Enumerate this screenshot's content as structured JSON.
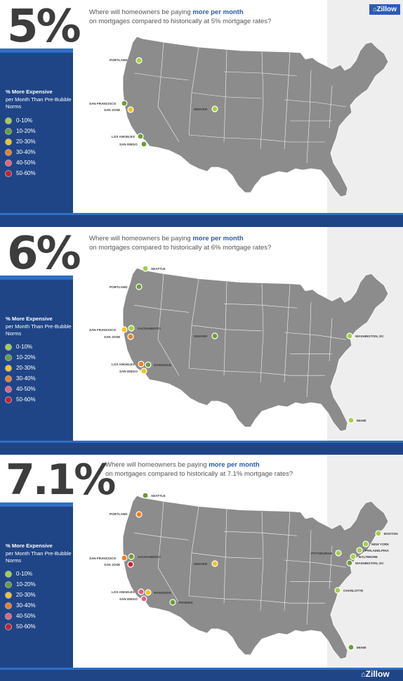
{
  "legend": {
    "title_bold": "% More Expensive",
    "title_rest": "per Month Than Pre-Bubble Norms",
    "ranges": [
      "0-10%",
      "10-20%",
      "20-30%",
      "30-40%",
      "40-50%",
      "50-60%"
    ],
    "colors": [
      "#a6cf45",
      "#6c9d34",
      "#f6c21b",
      "#ef7f22",
      "#ee5f79",
      "#cc1f2e"
    ]
  },
  "brand": "Zillow",
  "panels": [
    {
      "rate": "5%",
      "question_pre": "Where will homeowners be paying ",
      "question_hl": "more per month",
      "question_post": "on mortgages compared to historically at 5% mortgage rates?",
      "cities": [
        {
          "name": "PORTLAND",
          "bucket": 0
        },
        {
          "name": "SAN FRANCISCO",
          "bucket": 1
        },
        {
          "name": "SAN JOSE",
          "bucket": 2
        },
        {
          "name": "DENVER",
          "bucket": 0
        },
        {
          "name": "LOS ANGELES",
          "bucket": 1
        },
        {
          "name": "SAN DIEGO",
          "bucket": 1
        }
      ]
    },
    {
      "rate": "6%",
      "question_pre": "Where will homeowners be paying ",
      "question_hl": "more per month",
      "question_post": "on mortgages compared to historically at 6% mortgage rates?",
      "cities": [
        {
          "name": "SEATTLE",
          "bucket": 0
        },
        {
          "name": "PORTLAND",
          "bucket": 1
        },
        {
          "name": "SAN FRANCISCO",
          "bucket": 2
        },
        {
          "name": "SACRAMENTO",
          "bucket": 0
        },
        {
          "name": "SAN JOSE",
          "bucket": 3
        },
        {
          "name": "DENVER",
          "bucket": 1
        },
        {
          "name": "LOS ANGELES",
          "bucket": 3
        },
        {
          "name": "RIVERSIDE",
          "bucket": 1
        },
        {
          "name": "SAN DIEGO",
          "bucket": 2
        },
        {
          "name": "WASHINGTON, DC",
          "bucket": 0
        },
        {
          "name": "MIAMI",
          "bucket": 0
        }
      ]
    },
    {
      "rate": "7.1%",
      "question_pre": "Where will homeowners be paying ",
      "question_hl": "more per month",
      "question_post": "on mortgages compared to historically at 7.1% mortgage rates?",
      "cities": [
        {
          "name": "SEATTLE",
          "bucket": 1
        },
        {
          "name": "PORTLAND",
          "bucket": 3
        },
        {
          "name": "SAN FRANCISCO",
          "bucket": 3
        },
        {
          "name": "SACRAMENTO",
          "bucket": 1
        },
        {
          "name": "SAN JOSE",
          "bucket": 5
        },
        {
          "name": "DENVER",
          "bucket": 2
        },
        {
          "name": "LOS ANGELES",
          "bucket": 4
        },
        {
          "name": "RIVERSIDE",
          "bucket": 2
        },
        {
          "name": "SAN DIEGO",
          "bucket": 4
        },
        {
          "name": "PHOENIX",
          "bucket": 1
        },
        {
          "name": "BOSTON",
          "bucket": 0
        },
        {
          "name": "NEW YORK",
          "bucket": 0
        },
        {
          "name": "PHILADELPHIA",
          "bucket": 0
        },
        {
          "name": "PITTSBURGH",
          "bucket": 0
        },
        {
          "name": "BALTIMORE",
          "bucket": 0
        },
        {
          "name": "WASHINGTON, DC",
          "bucket": 1
        },
        {
          "name": "CHARLOTTE",
          "bucket": 0
        },
        {
          "name": "MIAMI",
          "bucket": 1
        }
      ]
    }
  ]
}
